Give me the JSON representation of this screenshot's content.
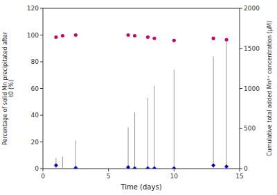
{
  "chart_data": {
    "type": "scatter",
    "xlabel": "Time (days)",
    "ylabel": "Percentage of solid Mn precipitated after\nt0 (%)",
    "y2label": "Cumulative total added Mn²⁺ concentration (μM)",
    "xlim": [
      0,
      15
    ],
    "xticks": [
      0,
      5,
      10,
      15
    ],
    "ylim": [
      0,
      120
    ],
    "yticks": [
      0,
      20,
      40,
      60,
      80,
      100,
      120
    ],
    "y2lim": [
      0,
      2000
    ],
    "y2ticks": [
      0,
      500,
      1000,
      1500,
      2000
    ],
    "series": [
      {
        "type": "stem",
        "color": "#999999",
        "x": [
          1.0,
          1.5,
          2.5,
          4.0,
          6.5,
          7.0,
          8.0,
          8.5,
          10.0,
          13.0,
          14.0
        ],
        "values": [
          8,
          9,
          21,
          0.5,
          31,
          42,
          53,
          62,
          74,
          84,
          95
        ]
      },
      {
        "type": "scatter",
        "marker": "diamond",
        "color": "#0000cc",
        "x": [
          1.0,
          2.5,
          6.5,
          7.0,
          8.0,
          8.5,
          10.0,
          13.0,
          14.0
        ],
        "values": [
          2.5,
          0.5,
          1.0,
          0.3,
          0.3,
          0.3,
          0.3,
          2.5,
          1.5
        ]
      },
      {
        "type": "scatter",
        "marker": "circle",
        "color": "#cc0066",
        "x": [
          1.0,
          1.5,
          2.5,
          6.5,
          7.0,
          8.0,
          8.5,
          10.0,
          13.0,
          14.0
        ],
        "values": [
          98.5,
          99.5,
          100,
          100,
          99.5,
          98.5,
          97.5,
          96,
          97.5,
          96.5
        ],
        "errors": [
          0.5,
          0.3,
          0.4,
          0.3,
          0.5,
          0.4,
          0.6,
          0.5,
          1.0,
          0.5
        ]
      }
    ]
  }
}
